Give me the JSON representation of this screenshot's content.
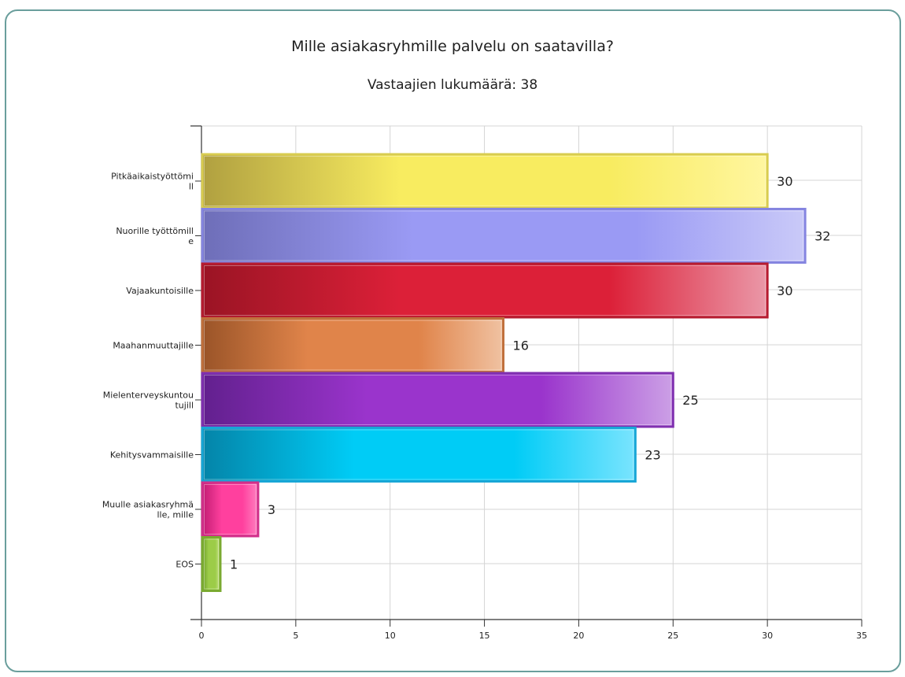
{
  "chart_data": {
    "type": "bar",
    "orientation": "horizontal",
    "title": "Mille asiakasryhmille palvelu on saatavilla?",
    "subtitle": "Vastaajien lukumäärä: 38",
    "xlim": [
      0,
      35
    ],
    "x_ticks": [
      0,
      5,
      10,
      15,
      20,
      25,
      30,
      35
    ],
    "grid": true,
    "categories": [
      [
        "Pitkäaikaistyöttömi",
        "ll"
      ],
      [
        "Nuorille työttömill",
        "e"
      ],
      [
        "Vajaakuntoisille"
      ],
      [
        "Maahanmuuttajille"
      ],
      [
        "Mielenterveyskuntou",
        "tujill"
      ],
      [
        "Kehitysvammaisille"
      ],
      [
        "Muulle asiakasryhmä",
        "lle, mille"
      ],
      [
        "EOS"
      ]
    ],
    "values": [
      30,
      32,
      30,
      16,
      25,
      23,
      3,
      1
    ],
    "value_labels": [
      "30",
      "32",
      "30",
      "16",
      "25",
      "23",
      "3",
      "1"
    ],
    "colors": [
      {
        "dark": "#b0a040",
        "mid": "#f8ec60",
        "light": "#fff6a0",
        "border": "#d8cc50"
      },
      {
        "dark": "#6e6eb8",
        "mid": "#9a9af4",
        "light": "#cacaf8",
        "border": "#8585e0"
      },
      {
        "dark": "#9a1424",
        "mid": "#dc2038",
        "light": "#ea98a8",
        "border": "#b61c30"
      },
      {
        "dark": "#9a5428",
        "mid": "#e0844a",
        "light": "#f0c2a2",
        "border": "#c0703c"
      },
      {
        "dark": "#62208e",
        "mid": "#9a34cc",
        "light": "#cca0e6",
        "border": "#8030b0"
      },
      {
        "dark": "#0484a8",
        "mid": "#00ccf6",
        "light": "#7ae4fe",
        "border": "#18a6d6"
      },
      {
        "dark": "#c01c72",
        "mid": "#ff409e",
        "light": "#ff80c0",
        "border": "#d0308a"
      },
      {
        "dark": "#6c9c28",
        "mid": "#9ccc48",
        "light": "#c8e488",
        "border": "#7aaa30"
      }
    ]
  }
}
